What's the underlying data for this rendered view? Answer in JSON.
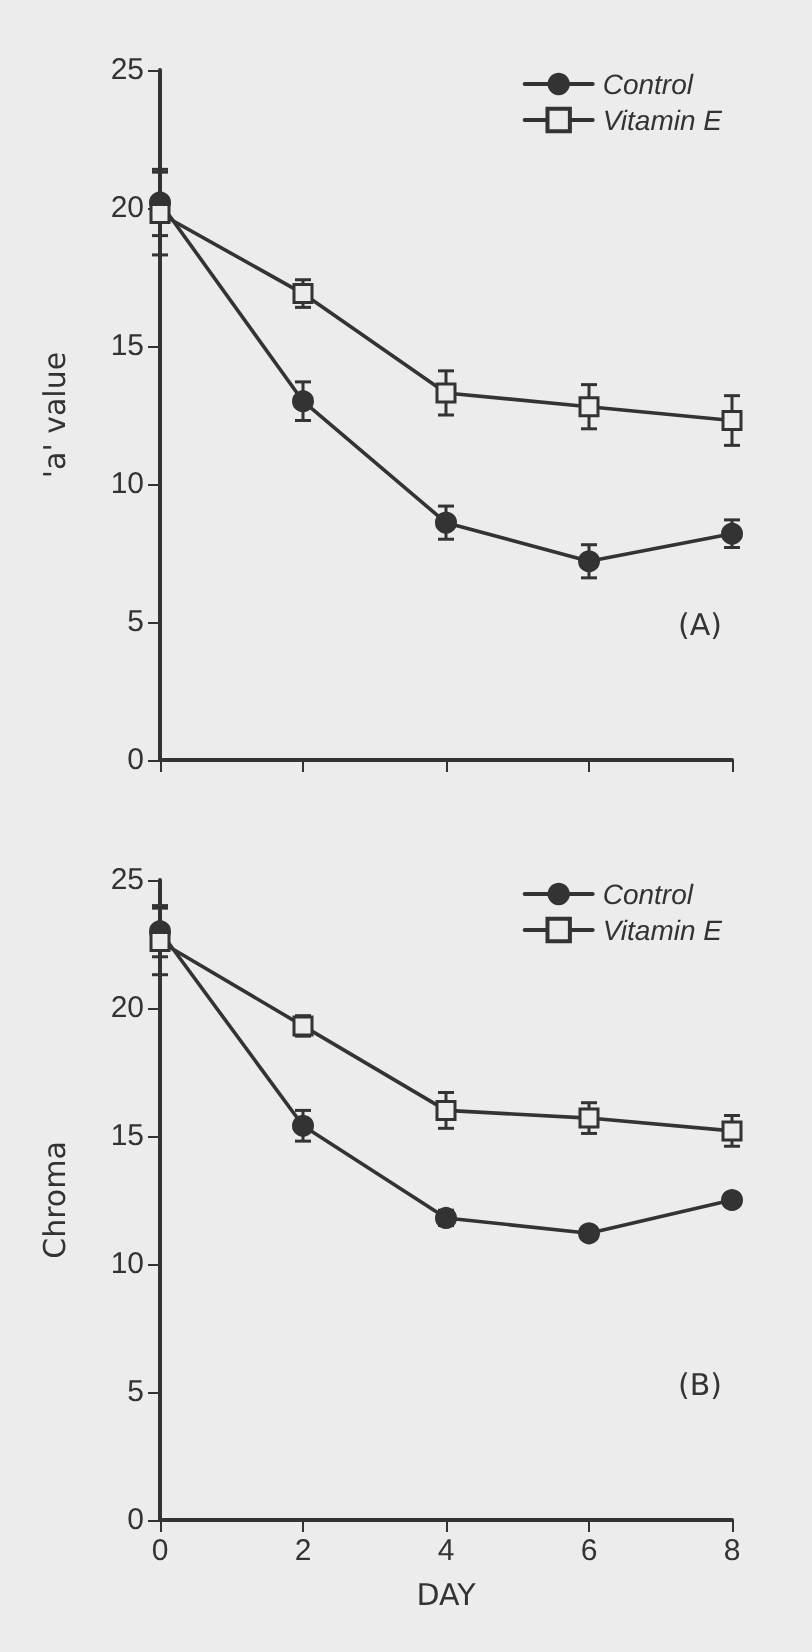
{
  "chart_data": [
    {
      "type": "line",
      "ylabel": "'a' value",
      "annotations": [
        "(A)"
      ],
      "x": [
        0,
        2,
        4,
        6,
        8
      ],
      "xlim": [
        0,
        8
      ],
      "xticks": [
        0,
        2,
        4,
        6,
        8
      ],
      "ylim": [
        0,
        25
      ],
      "yticks": [
        0,
        5,
        10,
        15,
        20,
        25
      ],
      "tick_labels": "y",
      "legend": "top right",
      "grid": false,
      "series": [
        {
          "name": "Control",
          "color": "#333333",
          "marker": "circle",
          "values": [
            20.2,
            13.0,
            8.6,
            7.2,
            8.2
          ],
          "errors": [
            1.2,
            0.7,
            0.6,
            0.6,
            0.5
          ]
        },
        {
          "name": "Vitamin E",
          "color": "#333333",
          "marker": "square",
          "values": [
            19.8,
            16.9,
            13.3,
            12.8,
            12.3
          ],
          "errors": [
            1.5,
            0.5,
            0.8,
            0.8,
            0.9
          ]
        }
      ]
    },
    {
      "type": "line",
      "ylabel": "Chroma",
      "xlabel": "DAY",
      "annotations": [
        "(B)"
      ],
      "x": [
        0,
        2,
        4,
        6,
        8
      ],
      "xlim": [
        0,
        8
      ],
      "xticks": [
        0,
        2,
        4,
        6,
        8
      ],
      "ylim": [
        0,
        25
      ],
      "yticks": [
        0,
        5,
        10,
        15,
        20,
        25
      ],
      "legend": "top right",
      "grid": false,
      "series": [
        {
          "name": "Control",
          "color": "#333333",
          "marker": "circle",
          "values": [
            23.0,
            15.4,
            11.8,
            11.2,
            12.5
          ],
          "errors": [
            1.0,
            0.6,
            0.3,
            null,
            null
          ]
        },
        {
          "name": "Vitamin E",
          "color": "#333333",
          "marker": "square",
          "values": [
            22.6,
            19.3,
            16.0,
            15.7,
            15.2
          ],
          "errors": [
            1.3,
            0.4,
            0.7,
            0.6,
            0.6
          ]
        }
      ]
    }
  ]
}
